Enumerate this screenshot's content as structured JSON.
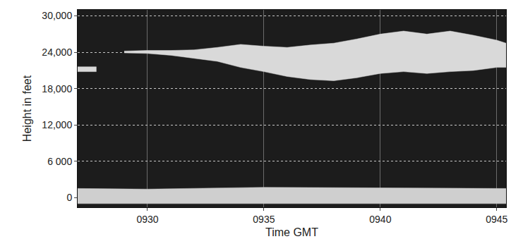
{
  "chart_data": {
    "type": "area",
    "x_title": "Time GMT",
    "y_title": "Height in feet",
    "xlim": [
      927,
      945.4
    ],
    "xticks": [
      {
        "value": 930,
        "label": "0930"
      },
      {
        "value": 935,
        "label": "0935"
      },
      {
        "value": 940,
        "label": "0940"
      },
      {
        "value": 945,
        "label": "0945"
      }
    ],
    "ylim": [
      -1600,
      31000
    ],
    "yticks": [
      0,
      {
        "value": 6000,
        "label": "6 000"
      },
      {
        "value": 12000,
        "label": "12,000"
      },
      {
        "value": 18000,
        "label": "18,000"
      },
      {
        "value": 24000,
        "label": "24,000"
      },
      {
        "value": 30000,
        "label": "30,000"
      }
    ],
    "grid": true,
    "series": [
      {
        "color": "#d9d9d9",
        "x": [
          927,
          927.8
        ],
        "values": [
          21600,
          21600
        ],
        "base": [
          20800,
          20800
        ]
      },
      {
        "color": "#d9d9d9",
        "x": [
          929,
          930,
          931,
          932,
          933,
          934,
          935,
          936,
          937,
          938,
          939,
          940,
          941,
          942,
          943,
          944,
          945,
          945.4
        ],
        "values": [
          24200,
          24300,
          24300,
          24400,
          24800,
          25300,
          25000,
          24800,
          25200,
          25500,
          26200,
          27000,
          27500,
          27000,
          27500,
          26800,
          26000,
          25500
        ],
        "base": [
          23900,
          23800,
          23500,
          23000,
          22500,
          21500,
          20800,
          20000,
          19500,
          19300,
          19800,
          20500,
          20800,
          20500,
          20800,
          21000,
          21500,
          21500
        ]
      },
      {
        "color": "#cfcfcf",
        "x": [
          927,
          930,
          935,
          940,
          945.4
        ],
        "values": [
          1500,
          1400,
          1700,
          1600,
          1500
        ],
        "base": [
          -1000,
          -1000,
          -1000,
          -1000,
          -1000
        ]
      }
    ]
  }
}
